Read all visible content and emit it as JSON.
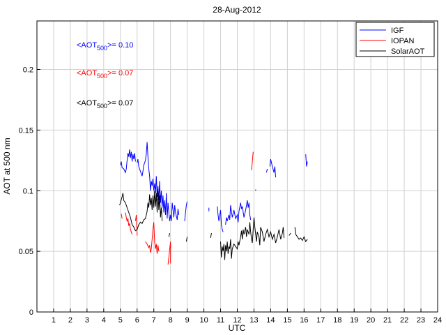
{
  "chart_data": {
    "type": "line",
    "title": "28-Aug-2012",
    "xlabel": "UTC",
    "ylabel": "AOT at 500 nm",
    "xlim": [
      0,
      24
    ],
    "ylim": [
      0,
      0.24
    ],
    "xticks": [
      "1",
      "2",
      "3",
      "4",
      "5",
      "6",
      "7",
      "8",
      "9",
      "10",
      "11",
      "12",
      "13",
      "14",
      "15",
      "16",
      "17",
      "18",
      "19",
      "20",
      "21",
      "22",
      "23",
      "24"
    ],
    "yticks": [
      "0",
      "0.05",
      "0.1",
      "0.15",
      "0.2"
    ],
    "grid": true,
    "legend": "top-right",
    "annotations": [
      {
        "prefix": "<AOT",
        "sub": "500",
        "suffix": ">= 0.10",
        "color": "#0000ff"
      },
      {
        "prefix": "<AOT",
        "sub": "500",
        "suffix": ">= 0.07",
        "color": "#ff0000"
      },
      {
        "prefix": "<AOT",
        "sub": "500",
        "suffix": ">= 0.07",
        "color": "#000000"
      }
    ],
    "series": [
      {
        "name": "IGF",
        "color": "#0000ff",
        "segments": [
          [
            [
              5.0,
              0.121
            ],
            [
              5.05,
              0.124
            ],
            [
              5.1,
              0.119
            ],
            [
              5.2,
              0.118
            ],
            [
              5.3,
              0.115
            ],
            [
              5.35,
              0.118
            ],
            [
              5.4,
              0.125
            ],
            [
              5.45,
              0.131
            ],
            [
              5.5,
              0.128
            ],
            [
              5.55,
              0.134
            ],
            [
              5.6,
              0.127
            ],
            [
              5.65,
              0.132
            ],
            [
              5.7,
              0.124
            ],
            [
              5.75,
              0.13
            ],
            [
              5.8,
              0.126
            ],
            [
              5.85,
              0.131
            ],
            [
              5.9,
              0.124
            ]
          ],
          [
            [
              6.0,
              0.123
            ],
            [
              6.05,
              0.126
            ],
            [
              6.1,
              0.12
            ],
            [
              6.2,
              0.116
            ],
            [
              6.3,
              0.112
            ],
            [
              6.35,
              0.116
            ],
            [
              6.4,
              0.121
            ],
            [
              6.5,
              0.125
            ],
            [
              6.55,
              0.13
            ],
            [
              6.6,
              0.14
            ],
            [
              6.65,
              0.128
            ],
            [
              6.7,
              0.118
            ],
            [
              6.75,
              0.112
            ],
            [
              6.8,
              0.1
            ],
            [
              6.85,
              0.108
            ],
            [
              6.9,
              0.104
            ],
            [
              6.95,
              0.11
            ],
            [
              7.0,
              0.1
            ],
            [
              7.05,
              0.106
            ],
            [
              7.1,
              0.098
            ],
            [
              7.15,
              0.112
            ],
            [
              7.2,
              0.095
            ],
            [
              7.25,
              0.104
            ],
            [
              7.3,
              0.092
            ],
            [
              7.35,
              0.108
            ],
            [
              7.4,
              0.09
            ],
            [
              7.45,
              0.1
            ],
            [
              7.5,
              0.086
            ],
            [
              7.55,
              0.096
            ],
            [
              7.6,
              0.082
            ],
            [
              7.65,
              0.092
            ],
            [
              7.7,
              0.08
            ],
            [
              7.75,
              0.098
            ],
            [
              7.8,
              0.077
            ],
            [
              7.85,
              0.09
            ],
            [
              7.9,
              0.082
            ],
            [
              7.95,
              0.075
            ],
            [
              8.0,
              0.08
            ],
            [
              8.05,
              0.075
            ],
            [
              8.1,
              0.09
            ],
            [
              8.2,
              0.078
            ],
            [
              8.25,
              0.088
            ],
            [
              8.3,
              0.082
            ],
            [
              8.4,
              0.076
            ],
            [
              8.45,
              0.085
            ],
            [
              8.5,
              0.08
            ]
          ],
          [
            [
              8.85,
              0.075
            ],
            [
              8.9,
              0.082
            ],
            [
              8.95,
              0.088
            ],
            [
              9.0,
              0.091
            ]
          ],
          [
            [
              10.3,
              0.083
            ],
            [
              10.3,
              0.086
            ]
          ],
          [
            [
              10.8,
              0.087
            ],
            [
              10.85,
              0.08
            ],
            [
              10.9,
              0.075
            ],
            [
              11.0,
              0.084
            ],
            [
              11.05,
              0.072
            ],
            [
              11.1,
              0.068
            ],
            [
              11.15,
              0.066
            ]
          ],
          [
            [
              11.3,
              0.072
            ],
            [
              11.35,
              0.078
            ],
            [
              11.4,
              0.075
            ],
            [
              11.5,
              0.08
            ],
            [
              11.55,
              0.076
            ],
            [
              11.6,
              0.088
            ],
            [
              11.7,
              0.078
            ],
            [
              11.8,
              0.084
            ],
            [
              11.9,
              0.077
            ],
            [
              12.0,
              0.08
            ],
            [
              12.05,
              0.074
            ],
            [
              12.1,
              0.083
            ],
            [
              12.2,
              0.09
            ],
            [
              12.25,
              0.085
            ],
            [
              12.3,
              0.087
            ],
            [
              12.4,
              0.078
            ],
            [
              12.5,
              0.084
            ],
            [
              12.6,
              0.092
            ],
            [
              12.65,
              0.086
            ],
            [
              12.7,
              0.09
            ],
            [
              12.75,
              0.08
            ],
            [
              12.8,
              0.076
            ]
          ],
          [
            [
              13.1,
              0.1
            ],
            [
              13.1,
              0.101
            ]
          ],
          [
            [
              13.75,
              0.115
            ],
            [
              13.8,
              0.118
            ]
          ],
          [
            [
              13.95,
              0.12
            ],
            [
              14.0,
              0.126
            ],
            [
              14.1,
              0.12
            ],
            [
              14.2,
              0.115
            ],
            [
              14.25,
              0.12
            ],
            [
              14.3,
              0.111
            ]
          ],
          [
            [
              16.1,
              0.13
            ],
            [
              16.15,
              0.12
            ],
            [
              16.2,
              0.124
            ]
          ]
        ]
      },
      {
        "name": "IOPAN",
        "color": "#ff0000",
        "segments": [
          [
            [
              5.05,
              0.081
            ],
            [
              5.1,
              0.077
            ]
          ],
          [
            [
              5.3,
              0.082
            ],
            [
              5.35,
              0.078
            ],
            [
              5.4,
              0.075
            ],
            [
              5.45,
              0.077
            ],
            [
              5.5,
              0.071
            ],
            [
              5.55,
              0.073
            ],
            [
              5.6,
              0.068
            ],
            [
              5.7,
              0.064
            ]
          ],
          [
            [
              5.9,
              0.075
            ],
            [
              5.95,
              0.08
            ],
            [
              6.0,
              0.063
            ]
          ],
          [
            [
              6.5,
              0.058
            ],
            [
              6.6,
              0.056
            ],
            [
              6.7,
              0.053
            ],
            [
              6.75,
              0.055
            ],
            [
              6.8,
              0.049
            ],
            [
              6.85,
              0.052
            ],
            [
              6.9,
              0.06
            ],
            [
              6.95,
              0.068
            ],
            [
              7.0,
              0.074
            ],
            [
              7.05,
              0.058
            ],
            [
              7.1,
              0.052
            ],
            [
              7.15,
              0.056
            ],
            [
              7.2,
              0.048
            ],
            [
              7.25,
              0.055
            ],
            [
              7.3,
              0.05
            ]
          ],
          [
            [
              7.85,
              0.039
            ],
            [
              7.9,
              0.045
            ],
            [
              7.95,
              0.052
            ],
            [
              8.0,
              0.058
            ],
            [
              8.0,
              0.04
            ]
          ],
          [
            [
              12.85,
              0.117
            ],
            [
              12.9,
              0.124
            ],
            [
              12.95,
              0.132
            ]
          ]
        ]
      },
      {
        "name": "SolarAOT",
        "color": "#000000",
        "segments": [
          [
            [
              4.95,
              0.088
            ],
            [
              5.0,
              0.09
            ],
            [
              5.1,
              0.095
            ],
            [
              5.15,
              0.098
            ],
            [
              5.2,
              0.092
            ],
            [
              5.3,
              0.09
            ],
            [
              5.4,
              0.086
            ],
            [
              5.5,
              0.082
            ],
            [
              5.6,
              0.078
            ],
            [
              5.7,
              0.072
            ],
            [
              5.8,
              0.07
            ],
            [
              5.9,
              0.067
            ],
            [
              6.0,
              0.068
            ],
            [
              6.1,
              0.072
            ],
            [
              6.2,
              0.074
            ],
            [
              6.3,
              0.073
            ],
            [
              6.4,
              0.076
            ],
            [
              6.5,
              0.077
            ],
            [
              6.6,
              0.083
            ],
            [
              6.65,
              0.09
            ],
            [
              6.7,
              0.086
            ],
            [
              6.75,
              0.097
            ],
            [
              6.8,
              0.088
            ],
            [
              6.85,
              0.094
            ],
            [
              6.9,
              0.084
            ],
            [
              6.95,
              0.096
            ],
            [
              7.0,
              0.086
            ],
            [
              7.05,
              0.1
            ],
            [
              7.1,
              0.087
            ],
            [
              7.15,
              0.098
            ],
            [
              7.2,
              0.082
            ],
            [
              7.25,
              0.1
            ],
            [
              7.3,
              0.084
            ],
            [
              7.35,
              0.096
            ],
            [
              7.4,
              0.078
            ],
            [
              7.45,
              0.086
            ],
            [
              7.5,
              0.075
            ]
          ],
          [
            [
              7.9,
              0.062
            ],
            [
              7.95,
              0.065
            ]
          ],
          [
            [
              8.95,
              0.058
            ],
            [
              9.0,
              0.062
            ]
          ],
          [
            [
              10.4,
              0.061
            ],
            [
              10.45,
              0.065
            ]
          ],
          [
            [
              11.0,
              0.058
            ],
            [
              11.05,
              0.045
            ],
            [
              11.1,
              0.054
            ],
            [
              11.15,
              0.05
            ],
            [
              11.2,
              0.056
            ],
            [
              11.25,
              0.043
            ],
            [
              11.3,
              0.055
            ],
            [
              11.35,
              0.05
            ],
            [
              11.4,
              0.058
            ],
            [
              11.45,
              0.048
            ],
            [
              11.5,
              0.054
            ],
            [
              11.55,
              0.052
            ],
            [
              11.6,
              0.06
            ],
            [
              11.65,
              0.044
            ],
            [
              11.7,
              0.052
            ],
            [
              11.8,
              0.056
            ],
            [
              11.9,
              0.054
            ],
            [
              12.0,
              0.052
            ],
            [
              12.05,
              0.058
            ],
            [
              12.1,
              0.055
            ],
            [
              12.2,
              0.062
            ],
            [
              12.25,
              0.067
            ],
            [
              12.3,
              0.06
            ],
            [
              12.35,
              0.068
            ],
            [
              12.4,
              0.064
            ],
            [
              12.5,
              0.07
            ],
            [
              12.55,
              0.062
            ],
            [
              12.6,
              0.068
            ],
            [
              12.7,
              0.064
            ],
            [
              12.75,
              0.074
            ],
            [
              12.8,
              0.066
            ],
            [
              12.85,
              0.06
            ],
            [
              12.9,
              0.057
            ],
            [
              12.95,
              0.068
            ],
            [
              13.0,
              0.078
            ],
            [
              13.05,
              0.07
            ],
            [
              13.1,
              0.064
            ],
            [
              13.15,
              0.058
            ],
            [
              13.2,
              0.066
            ],
            [
              13.3,
              0.062
            ],
            [
              13.35,
              0.055
            ],
            [
              13.4,
              0.07
            ],
            [
              13.5,
              0.066
            ],
            [
              13.6,
              0.058
            ],
            [
              13.7,
              0.064
            ],
            [
              13.8,
              0.068
            ],
            [
              13.9,
              0.062
            ],
            [
              14.0,
              0.066
            ],
            [
              14.1,
              0.06
            ],
            [
              14.2,
              0.064
            ],
            [
              14.3,
              0.057
            ],
            [
              14.4,
              0.062
            ],
            [
              14.5,
              0.068
            ],
            [
              14.6,
              0.06
            ],
            [
              14.7,
              0.065
            ],
            [
              14.75,
              0.07
            ],
            [
              14.8,
              0.061
            ]
          ],
          [
            [
              15.1,
              0.063
            ],
            [
              15.2,
              0.065
            ]
          ],
          [
            [
              15.45,
              0.07
            ],
            [
              15.5,
              0.064
            ],
            [
              15.6,
              0.062
            ],
            [
              15.7,
              0.06
            ],
            [
              15.8,
              0.061
            ],
            [
              15.9,
              0.059
            ],
            [
              16.0,
              0.062
            ],
            [
              16.1,
              0.058
            ],
            [
              16.2,
              0.06
            ]
          ]
        ]
      }
    ]
  }
}
